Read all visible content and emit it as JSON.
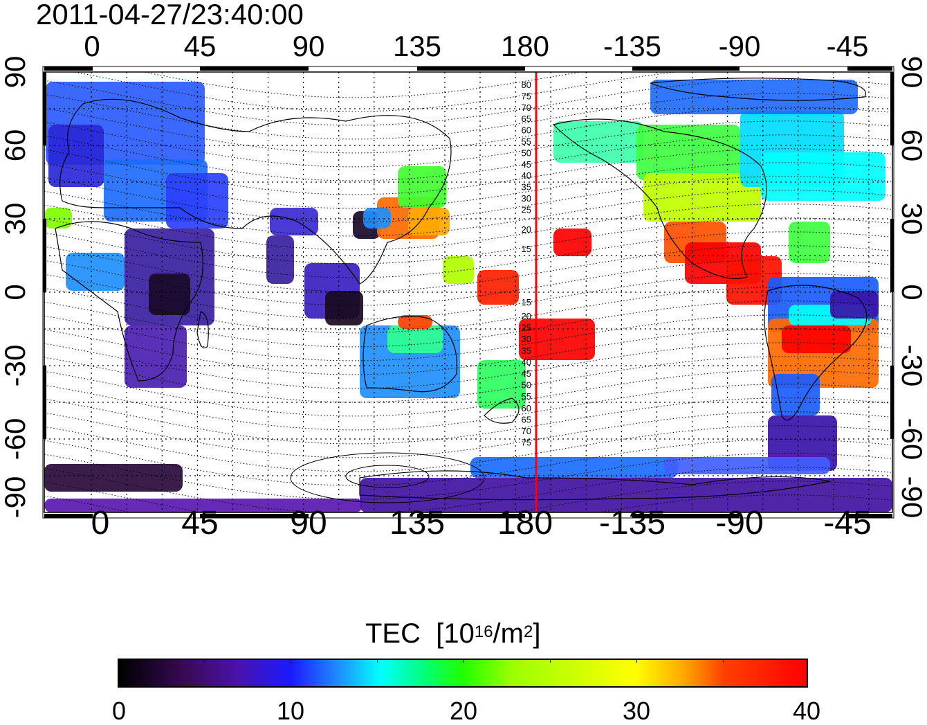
{
  "timestamp": "2011-04-27/23:40:00",
  "top_ticks": [
    "0",
    "45",
    "90",
    "135",
    "180",
    "-135",
    "-90",
    "-45"
  ],
  "bottom_ticks": [
    "0",
    "45",
    "90",
    "135",
    "180",
    "-135",
    "-90",
    "-45"
  ],
  "y_ticks": [
    "90",
    "60",
    "30",
    "0",
    "-30",
    "-60",
    "-90"
  ],
  "meridian_line_color": "#ff0000",
  "contour_labels_north": [
    "80",
    "75",
    "70",
    "65",
    "60",
    "55",
    "50",
    "45",
    "40",
    "35",
    "30",
    "25",
    "20",
    "15"
  ],
  "contour_labels_south": [
    "15",
    "20",
    "25",
    "30",
    "35",
    "40",
    "45",
    "50",
    "55",
    "60",
    "65",
    "70",
    "75"
  ],
  "colorbar": {
    "title": "TEC",
    "unit_prefix": "[10",
    "unit_exp": "16",
    "unit_mid": "/m",
    "unit_exp2": "2",
    "unit_suffix": "]",
    "ticks": [
      "0",
      "10",
      "20",
      "30",
      "40"
    ],
    "min": 0,
    "max": 40
  },
  "map_extent": {
    "lon_min": -20,
    "lon_max": 340,
    "lat_min": -90,
    "lat_max": 90
  }
}
